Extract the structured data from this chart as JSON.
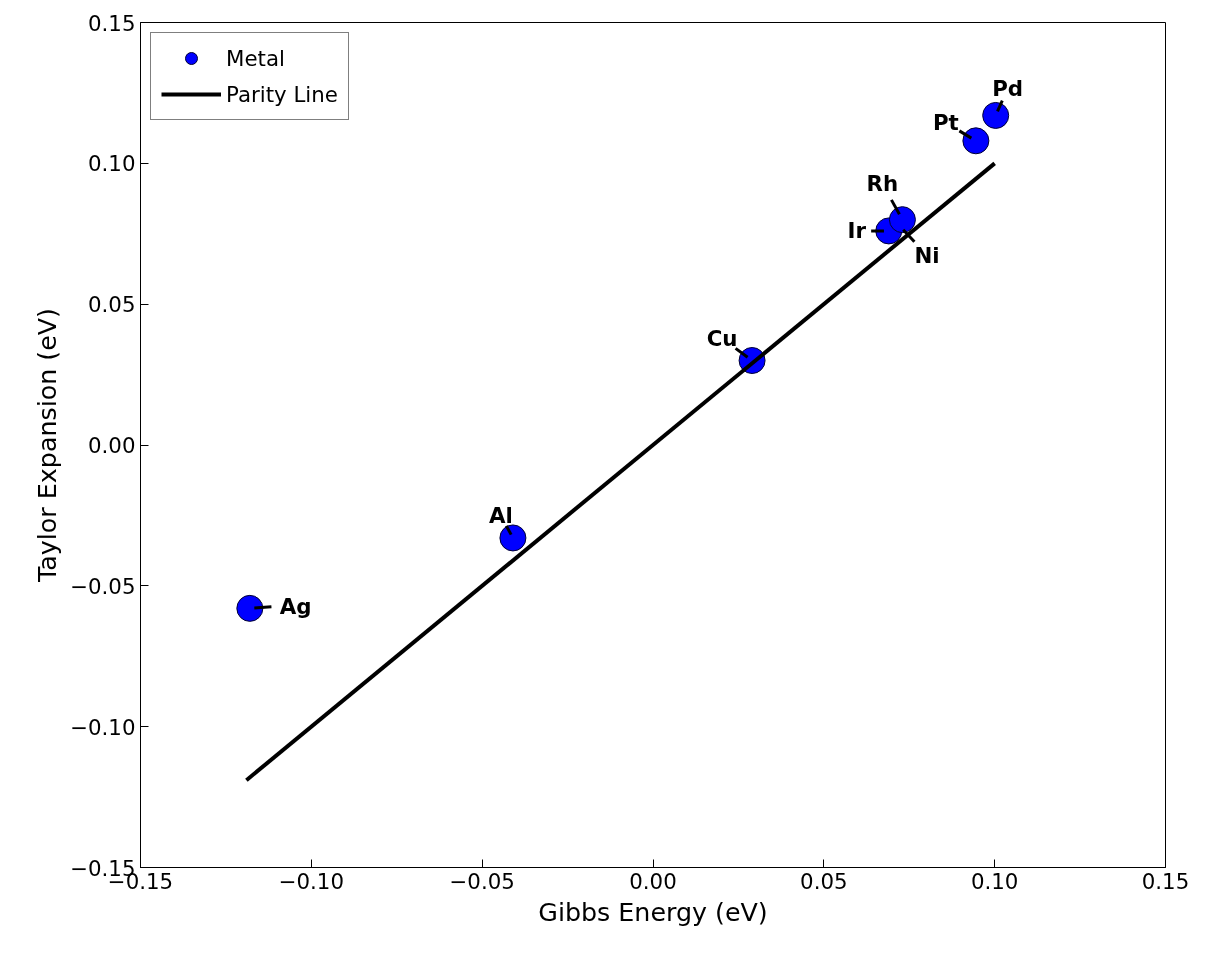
{
  "chart_data": {
    "type": "scatter",
    "xlabel": "Gibbs Energy (eV)",
    "ylabel": "Taylor Expansion (eV)",
    "xlim": [
      -0.15,
      0.15
    ],
    "ylim": [
      -0.15,
      0.15
    ],
    "xticks": [
      {
        "value": -0.15,
        "label": "−0.15"
      },
      {
        "value": -0.1,
        "label": "−0.10"
      },
      {
        "value": -0.05,
        "label": "−0.05"
      },
      {
        "value": 0,
        "label": "0.00"
      },
      {
        "value": 0.05,
        "label": "0.05"
      },
      {
        "value": 0.1,
        "label": "0.10"
      },
      {
        "value": 0.15,
        "label": "0.15"
      }
    ],
    "yticks": [
      {
        "value": -0.15,
        "label": "−0.15"
      },
      {
        "value": -0.1,
        "label": "−0.10"
      },
      {
        "value": -0.05,
        "label": "−0.05"
      },
      {
        "value": 0,
        "label": "0.00"
      },
      {
        "value": 0.05,
        "label": "0.05"
      },
      {
        "value": 0.1,
        "label": "0.10"
      },
      {
        "value": 0.15,
        "label": "0.15"
      }
    ],
    "grid": false,
    "legend": "top left",
    "series": [
      {
        "name": "Metal",
        "marker": "circle",
        "color": "#0000ff",
        "x": [
          -0.118,
          -0.041,
          0.029,
          0.069,
          0.072,
          0.073,
          0.0945,
          0.1003
        ],
        "values": [
          -0.058,
          -0.033,
          0.03,
          0.076,
          null,
          0.08,
          0.108,
          0.117
        ]
      },
      {
        "name": "Parity Line",
        "type": "line",
        "color": "#000000",
        "line_style": "solid",
        "x": [
          -0.119,
          0.1
        ],
        "values": [
          -0.119,
          0.1
        ]
      }
    ],
    "annotations": [
      {
        "text": "Ag",
        "x": -0.118,
        "y": -0.058
      },
      {
        "text": "Al",
        "x": -0.041,
        "y": -0.033
      },
      {
        "text": "Cu",
        "x": 0.029,
        "y": 0.03
      },
      {
        "text": "Ir",
        "x": 0.069,
        "y": 0.076
      },
      {
        "text": "Ni",
        "x": 0.072,
        "y": 0.078
      },
      {
        "text": "Rh",
        "x": 0.073,
        "y": 0.08
      },
      {
        "text": "Pt",
        "x": 0.0945,
        "y": 0.108
      },
      {
        "text": "Pd",
        "x": 0.1003,
        "y": 0.117
      }
    ]
  }
}
